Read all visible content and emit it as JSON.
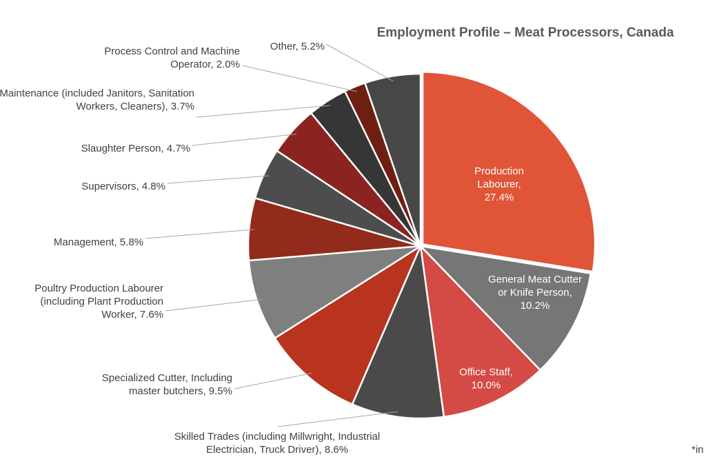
{
  "chart_data": {
    "type": "pie",
    "title": "Employment Profile – Meat Processors, Canada",
    "footnote": "*in",
    "unit": "%",
    "slices": [
      {
        "label": "Production Labourer",
        "value": 27.4,
        "color": "#e05438",
        "text": [
          "Production",
          "Labourer,",
          "27.4%"
        ]
      },
      {
        "label": "General Meat Cutter or Knife Person",
        "value": 10.2,
        "color": "#767676",
        "text": [
          "General Meat Cutter",
          "or Knife Person,",
          "10.2%"
        ]
      },
      {
        "label": "Office Staff",
        "value": 10.0,
        "color": "#d44a44",
        "text": [
          "Office Staff,",
          "10.0%"
        ]
      },
      {
        "label": "Skilled Trades (including Millwright, Industrial Electrician, Truck Driver)",
        "value": 8.6,
        "color": "#4a4a4a",
        "text": [
          "Skilled Trades (including Millwright, Industrial",
          "Electrician, Truck Driver), 8.6%"
        ]
      },
      {
        "label": "Specialized Cutter, Including master butchers",
        "value": 9.5,
        "color": "#b8341f",
        "text": [
          "Specialized Cutter, Including",
          "master butchers, 9.5%"
        ]
      },
      {
        "label": "Poultry Production Labourer (including Plant Production Worker)",
        "value": 7.6,
        "color": "#7f7f7f",
        "text": [
          "Poultry Production Labourer",
          "(including Plant Production",
          "Worker, 7.6%"
        ]
      },
      {
        "label": "Management",
        "value": 5.8,
        "color": "#922b1b",
        "text": [
          "Management, 5.8%"
        ]
      },
      {
        "label": "Supervisors",
        "value": 4.8,
        "color": "#4d4d4d",
        "text": [
          "Supervisors, 4.8%"
        ]
      },
      {
        "label": "Slaughter Person",
        "value": 4.7,
        "color": "#8b2420",
        "text": [
          "Slaughter Person, 4.7%"
        ]
      },
      {
        "label": "Maintenance (included Janitors, Sanitation Workers, Cleaners)",
        "value": 3.7,
        "color": "#363636",
        "text": [
          "Maintenance (included Janitors, Sanitation",
          "Workers, Cleaners), 3.7%"
        ]
      },
      {
        "label": "Process Control and Machine Operator",
        "value": 2.0,
        "color": "#6e1f12",
        "text": [
          "Process Control and Machine",
          "Operator, 2.0%"
        ]
      },
      {
        "label": "Other",
        "value": 5.2,
        "color": "#474747",
        "text": [
          "Other, 5.2%"
        ]
      }
    ]
  }
}
